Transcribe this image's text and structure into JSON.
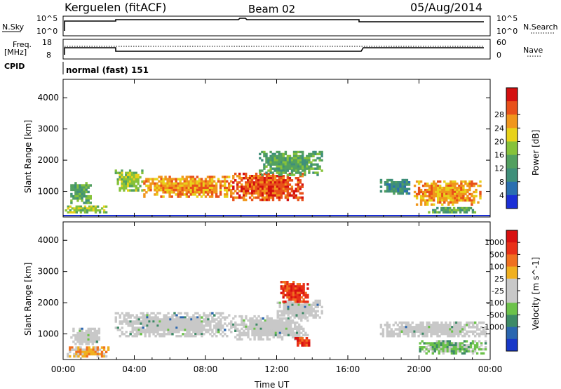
{
  "header": {
    "station": "Kerguelen (fitACF)",
    "beam": "Beam 02",
    "date": "05/Aug/2014"
  },
  "status_panels": {
    "nsky_label": "N.Sky",
    "nsearch_label": "N.Search",
    "freq_label_line1": "Freq.",
    "freq_label_line2": "[MHz]",
    "nave_label": "Nave",
    "cpid_label": "CPID",
    "cpid_value": "normal (fast) 151",
    "noise_ticks_left": [
      "10^5",
      "10^0"
    ],
    "noise_ticks_right": [
      "10^5",
      "10^0"
    ],
    "freq_ticks": [
      "18",
      "8"
    ],
    "nave_ticks": [
      "60",
      "0"
    ]
  },
  "colors": {
    "power_scale": [
      "#1b2fd6",
      "#2a6fb0",
      "#3f8f7a",
      "#52a060",
      "#86c23a",
      "#e8d21a",
      "#f0961c",
      "#e8501a",
      "#d41010"
    ],
    "velocity_scale": [
      "#1838c8",
      "#2a66b0",
      "#3d8a66",
      "#6cc24a",
      "#c8c8c8",
      "#c8c8c8",
      "#f0b020",
      "#f07020",
      "#e83018",
      "#d81010"
    ],
    "ground_scatter": "#b9b9b9",
    "frame": "#000000"
  },
  "chart_data": [
    {
      "type": "heatmap",
      "panel": "power",
      "ylabel": "Slant Range [km]",
      "yticks": [
        "1000",
        "2000",
        "3000",
        "4000"
      ],
      "ylim": [
        180,
        4590
      ],
      "xlim_hours": [
        0,
        24
      ],
      "xticks": [
        "00:00",
        "04:00",
        "08:00",
        "12:00",
        "16:00",
        "20:00",
        "00:00"
      ],
      "colorbar_label": "Power [dB]",
      "colorbar_ticks": [
        "4",
        "8",
        "12",
        "16",
        "20",
        "24",
        "28"
      ],
      "regions": [
        {
          "t0": 0.4,
          "t1": 1.6,
          "r0": 600,
          "r1": 1300,
          "level": 3
        },
        {
          "t0": 0.1,
          "t1": 2.6,
          "r0": 300,
          "r1": 550,
          "level": 4
        },
        {
          "t0": 2.9,
          "t1": 4.5,
          "r0": 1000,
          "r1": 1700,
          "level": 4
        },
        {
          "t0": 4.5,
          "t1": 9.5,
          "r0": 800,
          "r1": 1500,
          "level": 6
        },
        {
          "t0": 9.5,
          "t1": 13.5,
          "r0": 700,
          "r1": 1600,
          "level": 7
        },
        {
          "t0": 11.0,
          "t1": 14.6,
          "r0": 1500,
          "r1": 2300,
          "level": 3
        },
        {
          "t0": 17.8,
          "t1": 19.5,
          "r0": 900,
          "r1": 1400,
          "level": 2
        },
        {
          "t0": 19.7,
          "t1": 23.5,
          "r0": 550,
          "r1": 1350,
          "level": 6
        },
        {
          "t0": 20.5,
          "t1": 23.2,
          "r0": 300,
          "r1": 500,
          "level": 3
        }
      ]
    },
    {
      "type": "heatmap",
      "panel": "velocity",
      "ylabel": "Slant Range [km]",
      "yticks": [
        "1000",
        "2000",
        "3000",
        "4000"
      ],
      "ylim": [
        180,
        4590
      ],
      "xlim_hours": [
        0,
        24
      ],
      "xticks": [
        "00:00",
        "04:00",
        "08:00",
        "12:00",
        "16:00",
        "20:00",
        "00:00"
      ],
      "xlabel": "Time UT",
      "colorbar_label": "Velocity [m s^-1]",
      "colorbar_ticks": [
        "1000",
        "500",
        "100",
        "25",
        "-25",
        "-100",
        "-500",
        "-1000"
      ],
      "regions": [
        {
          "t0": 0.2,
          "t1": 2.6,
          "r0": 250,
          "r1": 600,
          "level": 6
        },
        {
          "t0": 0.4,
          "t1": 2.2,
          "r0": 650,
          "r1": 1200,
          "level": 4
        },
        {
          "t0": 2.9,
          "t1": 9.5,
          "r0": 900,
          "r1": 1700,
          "level": 4
        },
        {
          "t0": 9.5,
          "t1": 13.8,
          "r0": 800,
          "r1": 1600,
          "level": 4
        },
        {
          "t0": 12.0,
          "t1": 14.6,
          "r0": 1500,
          "r1": 2100,
          "level": 4
        },
        {
          "t0": 12.2,
          "t1": 13.8,
          "r0": 2000,
          "r1": 2700,
          "level": 8
        },
        {
          "t0": 13.0,
          "t1": 14.0,
          "r0": 600,
          "r1": 900,
          "level": 8
        },
        {
          "t0": 17.8,
          "t1": 23.8,
          "r0": 900,
          "r1": 1400,
          "level": 4
        },
        {
          "t0": 20.0,
          "t1": 23.8,
          "r0": 350,
          "r1": 800,
          "level": 3
        }
      ]
    }
  ]
}
